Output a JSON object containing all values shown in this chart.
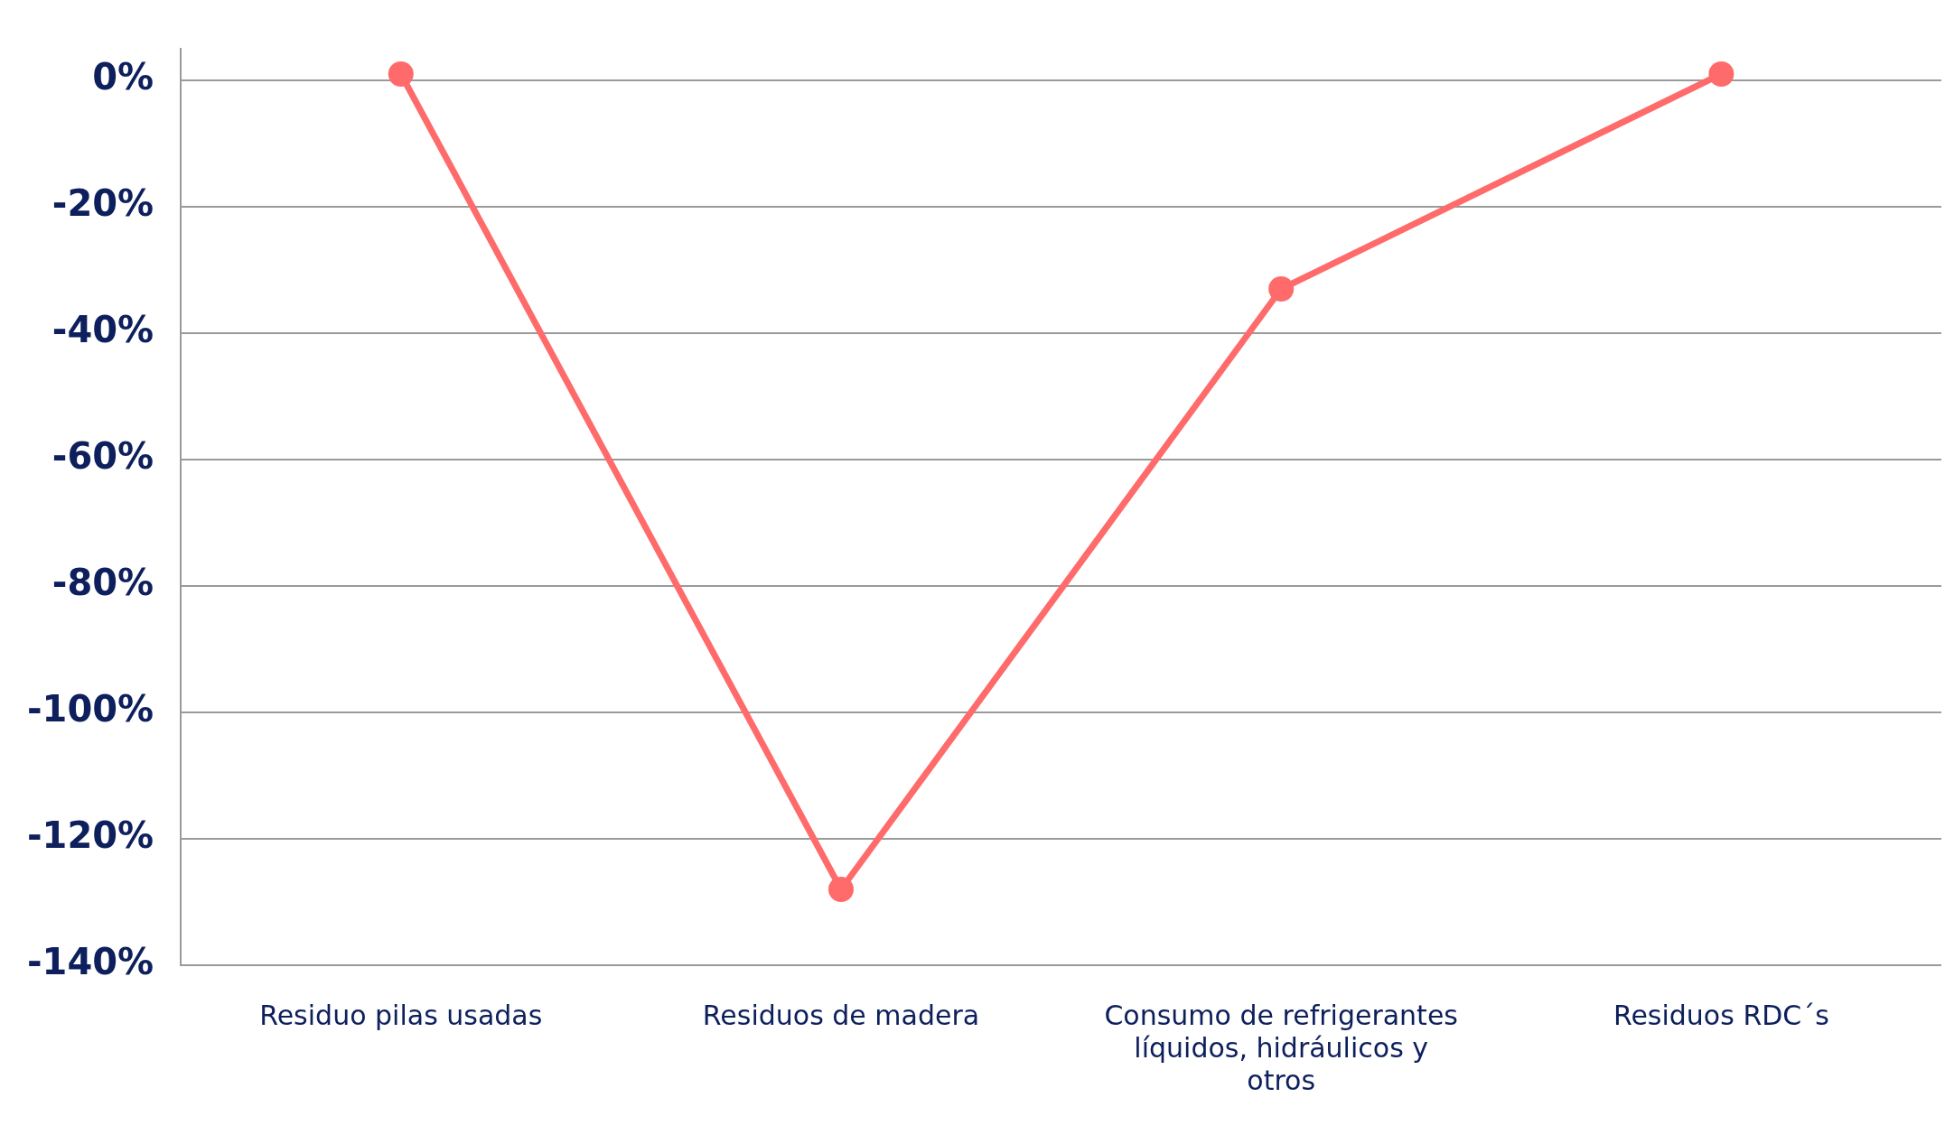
{
  "chart_data": {
    "type": "line",
    "categories": [
      "Residuo pilas usadas",
      "Residuos de madera",
      "Consumo de refrigerantes líquidos, hidráulicos y otros",
      "Residuos RDC´s"
    ],
    "series": [
      {
        "color": "#ff6b6b",
        "values": [
          1,
          -128,
          -33,
          1
        ]
      }
    ],
    "ylim": [
      -140,
      5
    ],
    "yticks": [
      {
        "value": 0,
        "label": "0%"
      },
      {
        "value": -20,
        "label": "-20%"
      },
      {
        "value": -40,
        "label": "-40%"
      },
      {
        "value": -60,
        "label": "-60%"
      },
      {
        "value": -80,
        "label": "-80%"
      },
      {
        "value": -100,
        "label": "-100%"
      },
      {
        "value": -120,
        "label": "-120%"
      },
      {
        "value": -140,
        "label": "-140%"
      }
    ],
    "grid": "y",
    "legend": false,
    "marker": "circle",
    "line_style": "solid"
  }
}
